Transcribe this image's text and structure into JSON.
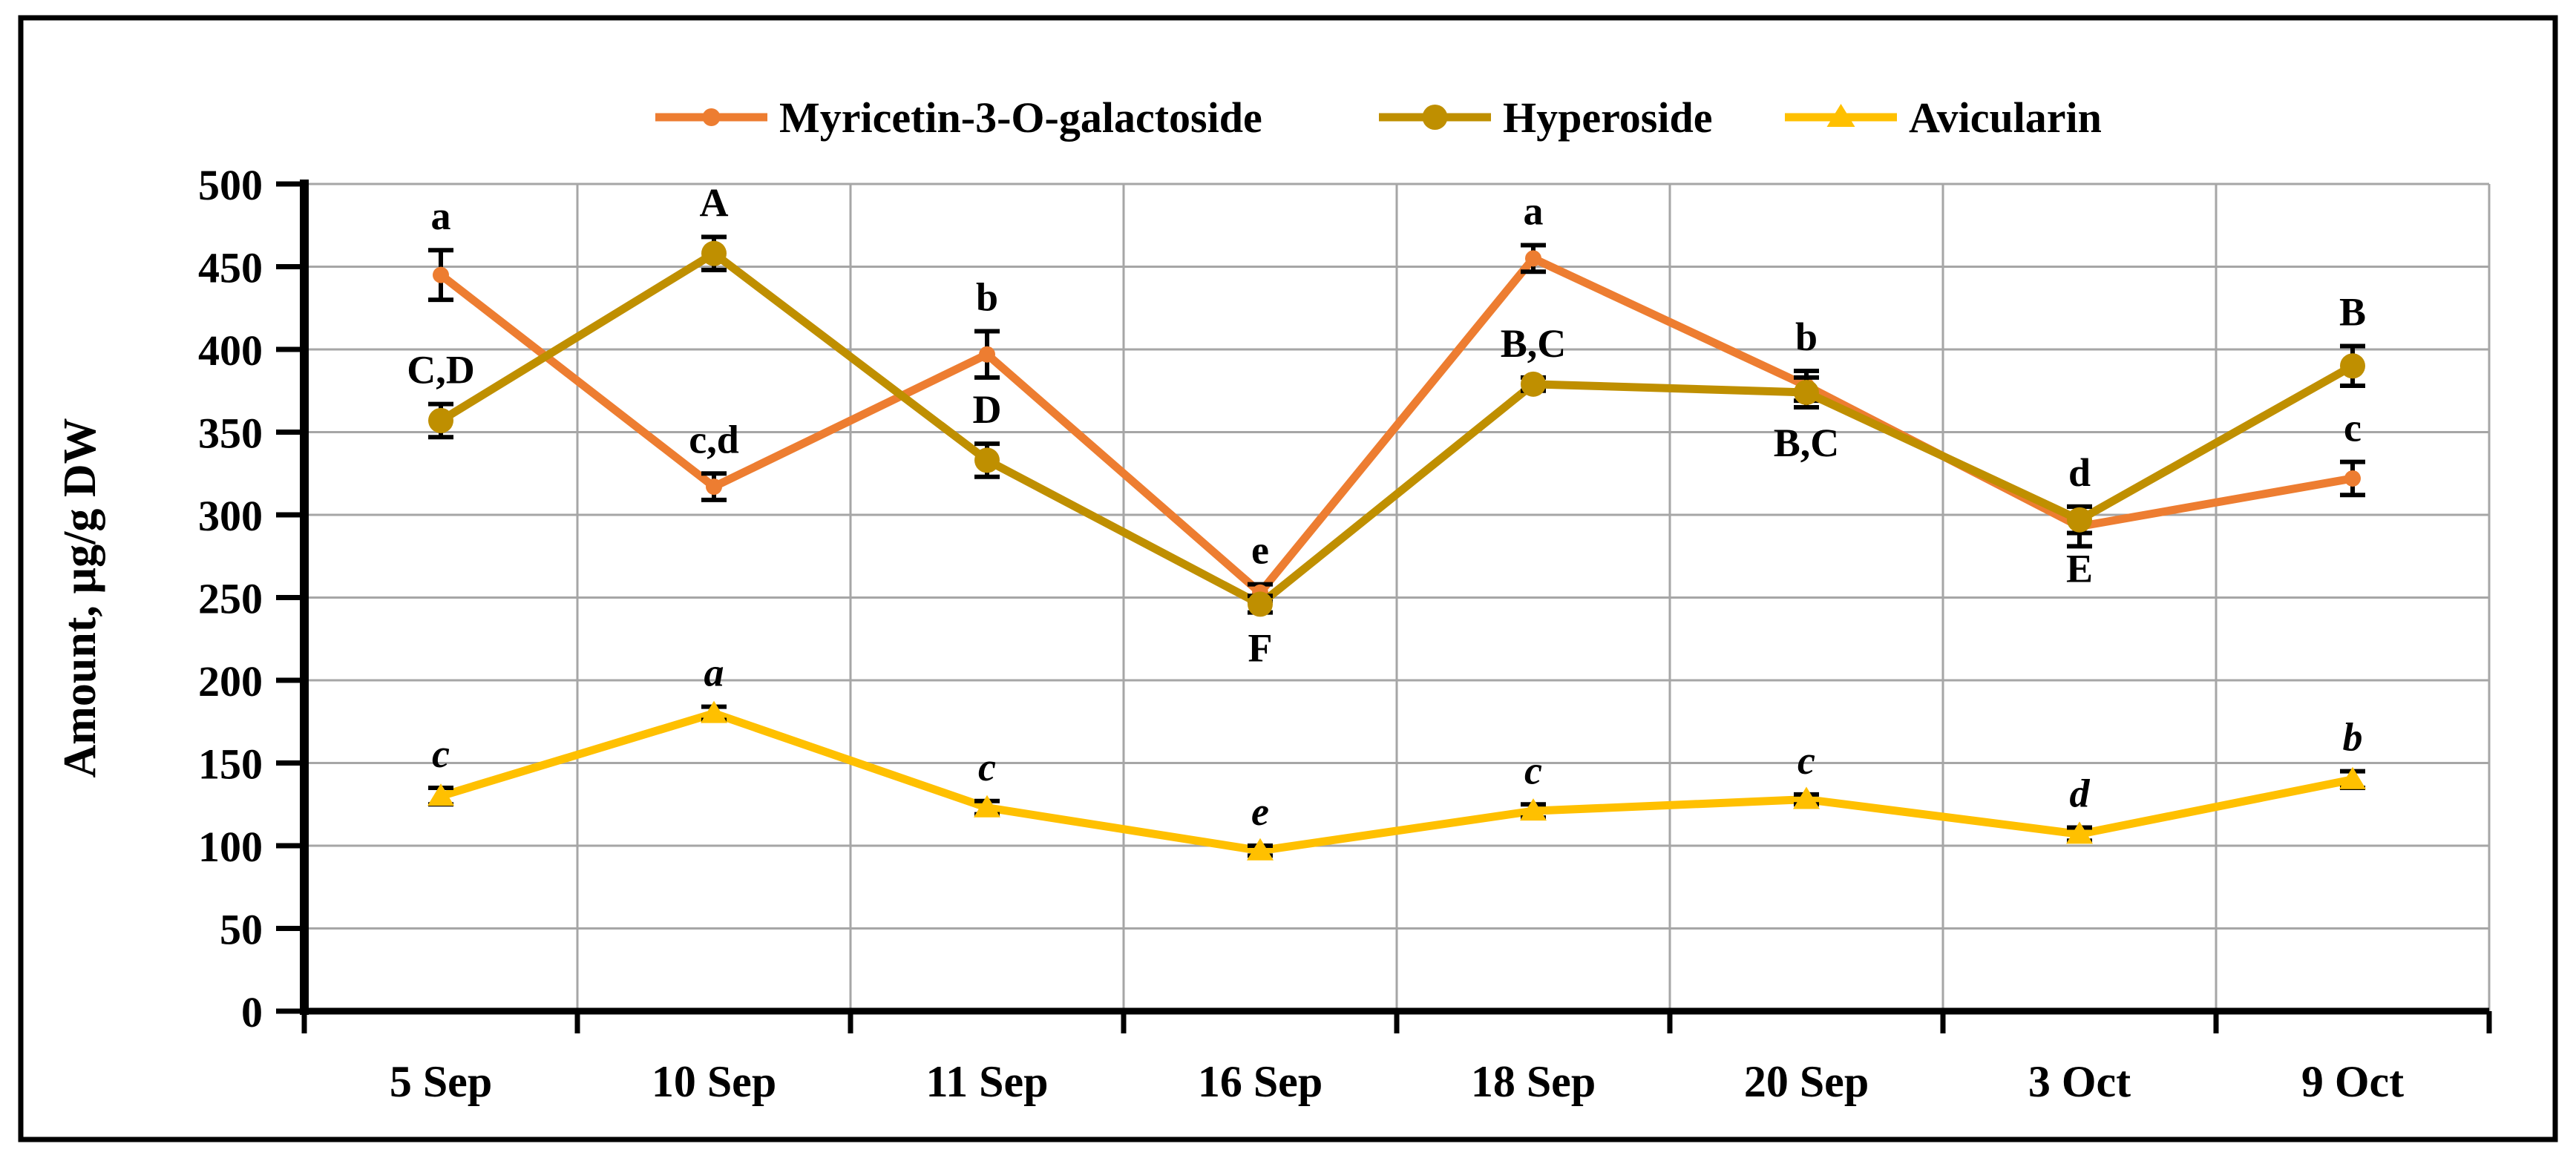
{
  "figure": {
    "background": "#FFFFFF",
    "border_color": "#000000",
    "grid_color": "#A6A6A6",
    "error_bar_color": "#000000",
    "annotation_color": "#000000"
  },
  "axes": {
    "y_title": "Amount, µg/g DW",
    "y_min": 0,
    "y_max": 500,
    "y_step": 50,
    "y_tick_labels": [
      "0",
      "50",
      "100",
      "150",
      "200",
      "250",
      "300",
      "350",
      "400",
      "450",
      "500"
    ],
    "x_labels": [
      "5 Sep",
      "10 Sep",
      "11 Sep",
      "16 Sep",
      "18 Sep",
      "20 Sep",
      "3 Oct",
      "9 Oct"
    ]
  },
  "legend": {
    "items": [
      {
        "label": "Myricetin-3-O-galactoside",
        "color": "#ED7D31",
        "marker": "dot"
      },
      {
        "label": "Hyperoside",
        "color": "#BF8F00",
        "marker": "circle"
      },
      {
        "label": "Avicularin",
        "color": "#FFC000",
        "marker": "triangle"
      }
    ]
  },
  "chart_data": {
    "type": "line",
    "title": "",
    "xlabel": "",
    "ylabel": "Amount, µg/g DW",
    "ylim": [
      0,
      500
    ],
    "grid": "horizontal and vertical gray gridlines",
    "legend_position": "top",
    "categories": [
      "5 Sep",
      "10 Sep",
      "11 Sep",
      "16 Sep",
      "18 Sep",
      "20 Sep",
      "3 Oct",
      "9 Oct"
    ],
    "series": [
      {
        "name": "Myricetin-3-O-galactoside",
        "color": "#ED7D31",
        "marker": "dot",
        "values": [
          445,
          317,
          397,
          253,
          455,
          378,
          293,
          322
        ],
        "errors": [
          15,
          8,
          14,
          5,
          8,
          9,
          12,
          10
        ],
        "point_labels": [
          "a",
          "c,d",
          "b",
          "e",
          "a",
          "b",
          "d",
          "c"
        ],
        "label_positions": [
          "above",
          "above",
          "above",
          "above",
          "above",
          "above",
          "above",
          "above"
        ],
        "label_style": "bold"
      },
      {
        "name": "Hyperoside",
        "color": "#BF8F00",
        "marker": "circle",
        "values": [
          357,
          458,
          333,
          246,
          379,
          374,
          297,
          390
        ],
        "errors": [
          10,
          10,
          10,
          5,
          4,
          9,
          8,
          12
        ],
        "point_labels": [
          "C,D",
          "A",
          "D",
          "F",
          "B,C",
          "B,C",
          "E",
          "B"
        ],
        "label_positions": [
          "above",
          "above",
          "above",
          "below",
          "above",
          "below",
          "below",
          "above"
        ],
        "label_style": "bold"
      },
      {
        "name": "Avicularin",
        "color": "#FFC000",
        "marker": "triangle",
        "values": [
          130,
          180,
          123,
          97,
          121,
          128,
          107,
          140
        ],
        "errors": [
          5,
          4,
          4,
          3,
          4,
          3,
          4,
          5
        ],
        "point_labels": [
          "c",
          "a",
          "c",
          "e",
          "c",
          "c",
          "d",
          "b"
        ],
        "label_positions": [
          "above",
          "above",
          "above",
          "above",
          "above",
          "above",
          "above",
          "above"
        ],
        "label_style": "bold-italic"
      }
    ]
  }
}
